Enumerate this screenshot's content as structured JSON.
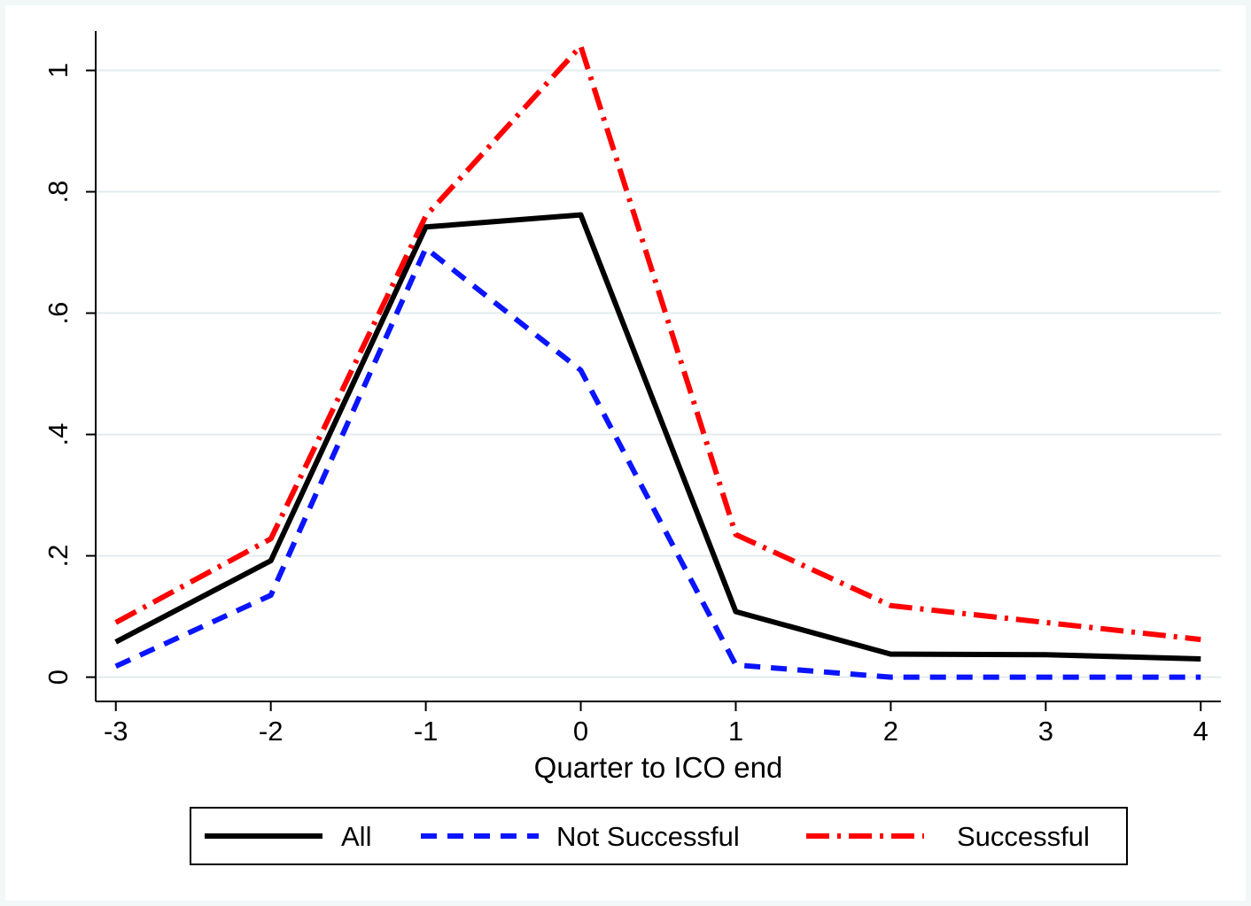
{
  "chart_data": {
    "type": "line",
    "xlabel": "Quarter to ICO end",
    "ylabel": "",
    "x": [
      -3,
      -2,
      -1,
      0,
      1,
      2,
      3,
      4
    ],
    "xticks": [
      "-3",
      "-2",
      "-1",
      "0",
      "1",
      "2",
      "3",
      "4"
    ],
    "yticks": [
      {
        "value": 0,
        "label": "0"
      },
      {
        "value": 0.2,
        "label": ".2"
      },
      {
        "value": 0.4,
        "label": ".4"
      },
      {
        "value": 0.6,
        "label": ".6"
      },
      {
        "value": 0.8,
        "label": ".8"
      },
      {
        "value": 1,
        "label": "1"
      }
    ],
    "xlim": [
      -3.13,
      4.13
    ],
    "ylim": [
      -0.04,
      1.065
    ],
    "grid": true,
    "legend_position": "bottom",
    "series": [
      {
        "name": "All",
        "values": [
          0.058,
          0.192,
          0.742,
          0.762,
          0.108,
          0.038,
          0.037,
          0.03
        ],
        "color": "#000000",
        "style": "solid"
      },
      {
        "name": "Not Successful",
        "values": [
          0.018,
          0.135,
          0.707,
          0.506,
          0.02,
          0.0,
          0.0,
          0.0
        ],
        "color": "#0a14ff",
        "style": "dashed"
      },
      {
        "name": "Successful",
        "values": [
          0.09,
          0.228,
          0.76,
          1.04,
          0.235,
          0.118,
          0.09,
          0.062
        ],
        "color": "#ff0000",
        "style": "dash-dot"
      }
    ]
  }
}
